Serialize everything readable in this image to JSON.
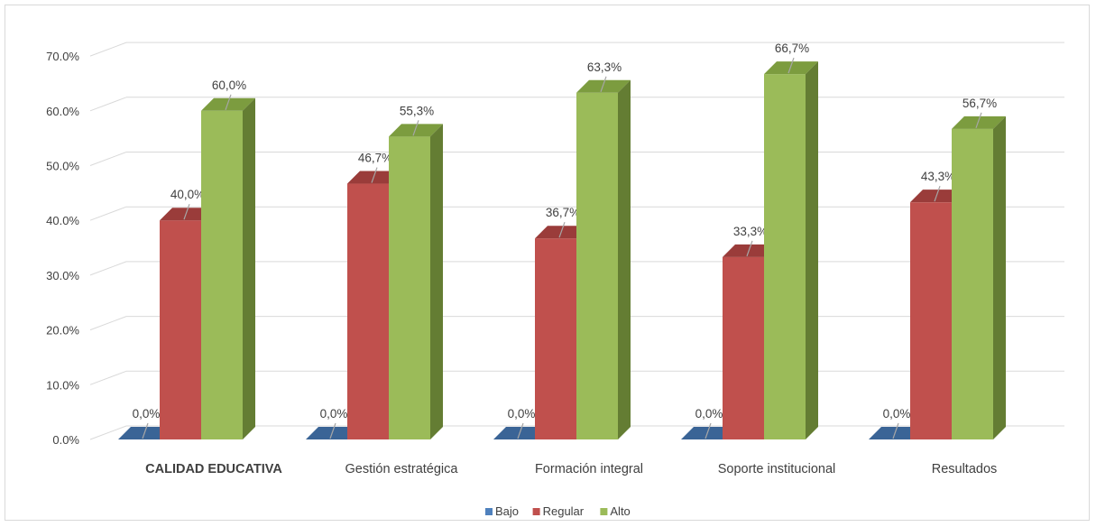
{
  "chart_data": {
    "type": "bar",
    "categories": [
      "CALIDAD EDUCATIVA",
      "Gestión estratégica",
      "Formación integral",
      "Soporte institucional",
      "Resultados"
    ],
    "series": [
      {
        "name": "Bajo",
        "values": [
          0.0,
          0.0,
          0.0,
          0.0,
          0.0
        ],
        "labels": [
          "0,0%",
          "0,0%",
          "0,0%",
          "0,0%",
          "0,0%"
        ]
      },
      {
        "name": "Regular",
        "values": [
          40.0,
          46.7,
          36.7,
          33.3,
          43.3
        ],
        "labels": [
          "40,0%",
          "46,7%",
          "36,7%",
          "33,3%",
          "43,3%"
        ]
      },
      {
        "name": "Alto",
        "values": [
          60.0,
          55.3,
          63.3,
          66.7,
          56.7
        ],
        "labels": [
          "60,0%",
          "55,3%",
          "63,3%",
          "66,7%",
          "56,7%"
        ]
      }
    ],
    "y_ticks": [
      "0.0%",
      "10.0%",
      "20.0%",
      "30.0%",
      "40.0%",
      "50.0%",
      "60.0%",
      "70.0%"
    ],
    "ylim": [
      0,
      70
    ],
    "grid": true,
    "legend_position": "bottom",
    "colors": {
      "Bajo": {
        "front": "#4f81bd",
        "top": "#3a6496",
        "side": "#2c4d75"
      },
      "Regular": {
        "front": "#c0504d",
        "top": "#9a3c3a",
        "side": "#7f302e"
      },
      "Alto": {
        "front": "#9bbb59",
        "top": "#7c9c3f",
        "side": "#647d33"
      }
    }
  }
}
